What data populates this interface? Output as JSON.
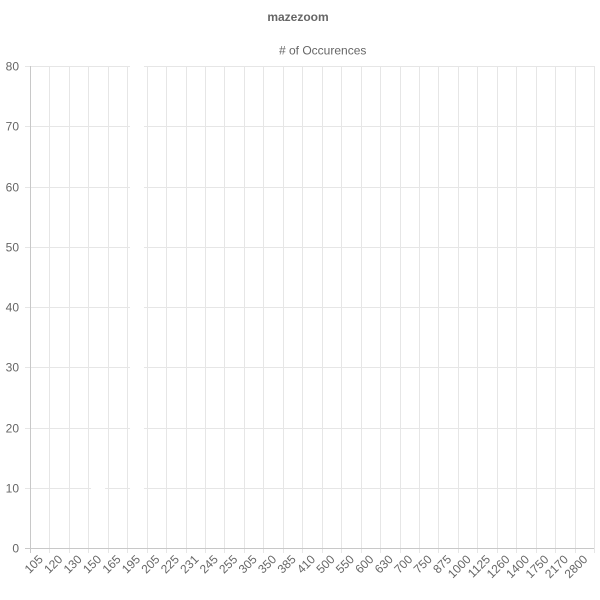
{
  "chart_data": {
    "type": "bar",
    "title": "mazezoom",
    "legend": {
      "position": "top",
      "entries": [
        {
          "name": "# of Occurences",
          "color": "#ffffff"
        }
      ]
    },
    "categories": [
      "105",
      "120",
      "130",
      "150",
      "165",
      "195",
      "205",
      "225",
      "231",
      "245",
      "255",
      "305",
      "350",
      "385",
      "410",
      "500",
      "550",
      "600",
      "630",
      "700",
      "750",
      "875",
      "1000",
      "1125",
      "1260",
      "1400",
      "1750",
      "2170",
      "2800"
    ],
    "series": [
      {
        "name": "# of Occurences",
        "color": "#ffffff",
        "values": [
          9,
          1,
          2,
          10,
          3,
          80,
          4,
          1,
          1,
          1,
          1,
          1,
          5,
          3,
          1,
          1,
          1,
          1,
          1,
          1,
          1,
          1,
          1,
          1,
          3,
          1,
          1,
          1,
          1
        ]
      }
    ],
    "xlabel": "",
    "ylabel": "",
    "ylim": [
      0,
      80
    ],
    "yticks": [
      0,
      10,
      20,
      30,
      40,
      50,
      60,
      70,
      80
    ],
    "grid": true
  }
}
